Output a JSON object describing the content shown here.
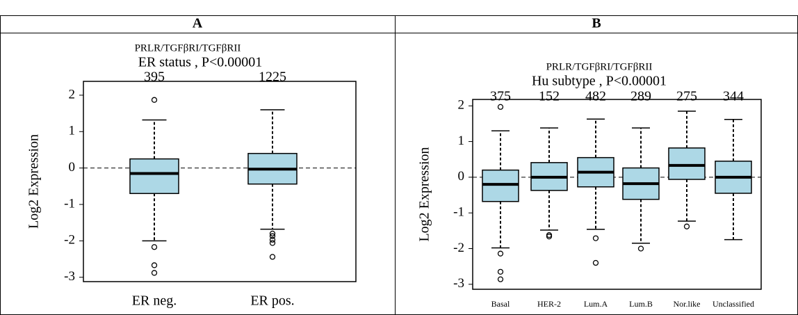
{
  "chart_data": [
    {
      "type": "box",
      "panel": "A",
      "title": "PRLR/TGFβRI/TGFβRII",
      "subtitle": "ER status , P<0.00001",
      "ylabel": "Log2 Expression",
      "categories": [
        "ER neg.",
        "ER pos."
      ],
      "n": [
        395,
        1225
      ],
      "boxes": [
        {
          "whisker_low": -2.0,
          "q1": -0.7,
          "median": -0.15,
          "q3": 0.25,
          "whisker_high": 1.32,
          "outliers": [
            1.87,
            -2.17,
            -2.67,
            -2.88
          ]
        },
        {
          "whisker_low": -1.68,
          "q1": -0.44,
          "median": -0.03,
          "q3": 0.4,
          "whisker_high": 1.6,
          "outliers": [
            -1.8,
            -1.87,
            -1.97,
            -2.06,
            -2.44
          ]
        }
      ],
      "color": "#add8e6",
      "hline": 0,
      "ylim": [
        -3.12,
        2.38
      ],
      "yticks": [
        -3,
        -2,
        -1,
        0,
        1,
        2
      ]
    },
    {
      "type": "box",
      "panel": "B",
      "title": "PRLR/TGFβRI/TGFβRII",
      "subtitle": "Hu subtype , P<0.00001",
      "ylabel": "Log2 Expression",
      "categories": [
        "Basal",
        "HER-2",
        "Lum.A",
        "Lum.B",
        "Nor.like",
        "Unclassified"
      ],
      "n": [
        375,
        152,
        482,
        289,
        275,
        344
      ],
      "boxes": [
        {
          "whisker_low": -1.98,
          "q1": -0.68,
          "median": -0.2,
          "q3": 0.2,
          "whisker_high": 1.3,
          "outliers": [
            1.97,
            -2.14,
            -2.65,
            -2.86
          ]
        },
        {
          "whisker_low": -1.48,
          "q1": -0.37,
          "median": 0,
          "q3": 0.41,
          "whisker_high": 1.38,
          "outliers": [
            -1.62,
            -1.66
          ]
        },
        {
          "whisker_low": -1.46,
          "q1": -0.27,
          "median": 0.14,
          "q3": 0.55,
          "whisker_high": 1.63,
          "outliers": [
            -1.71,
            -2.4
          ]
        },
        {
          "whisker_low": -1.85,
          "q1": -0.62,
          "median": -0.18,
          "q3": 0.26,
          "whisker_high": 1.38,
          "outliers": [
            -2.0
          ]
        },
        {
          "whisker_low": -1.23,
          "q1": -0.06,
          "median": 0.33,
          "q3": 0.82,
          "whisker_high": 1.85,
          "outliers": [
            -1.38
          ]
        },
        {
          "whisker_low": -1.75,
          "q1": -0.45,
          "median": 0,
          "q3": 0.45,
          "whisker_high": 1.62,
          "outliers": []
        }
      ],
      "color": "#add8e6",
      "hline": 0,
      "ylim": [
        -3.14,
        2.18
      ],
      "yticks": [
        -3,
        -2,
        -1,
        0,
        1,
        2
      ]
    }
  ]
}
